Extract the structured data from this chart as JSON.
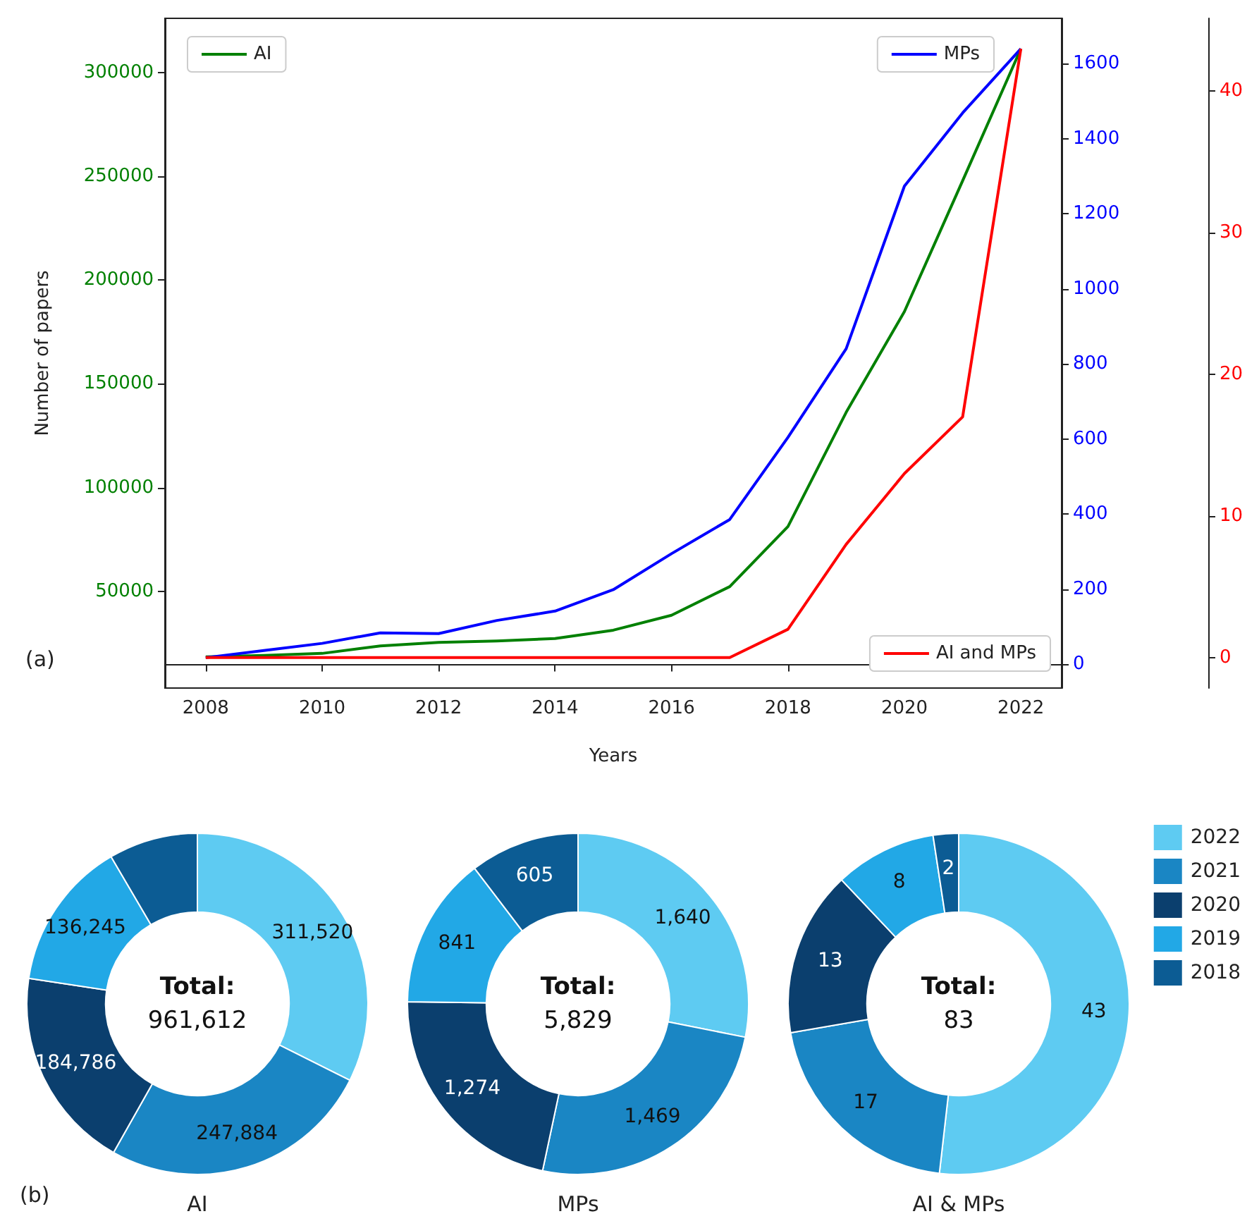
{
  "chart_data": [
    {
      "type": "line",
      "xlabel": "Years",
      "ylabel": "Number of papers",
      "x": [
        2008,
        2009,
        2010,
        2011,
        2012,
        2013,
        2014,
        2015,
        2016,
        2017,
        2018,
        2019,
        2020,
        2021,
        2022
      ],
      "xlim": [
        2007.3,
        2022.7
      ],
      "xticks": [
        2008,
        2010,
        2012,
        2014,
        2016,
        2018,
        2020,
        2022
      ],
      "ylim": [
        3300,
        326200
      ],
      "yticks": [
        50000,
        100000,
        150000,
        200000,
        250000,
        300000
      ],
      "y2lim": [
        -63,
        1721
      ],
      "y2ticks": [
        0,
        200,
        400,
        600,
        800,
        1000,
        1200,
        1400,
        1600
      ],
      "y3lim": [
        -2.15,
        45.15
      ],
      "y3ticks": [
        0,
        10,
        20,
        30,
        40
      ],
      "legend": "top left",
      "annotations": [
        "(a)"
      ],
      "series": [
        {
          "name": "AI",
          "color": "#008000",
          "axis": "y",
          "values": [
            18300,
            19000,
            20000,
            23600,
            25300,
            26000,
            27200,
            31200,
            38400,
            52200,
            81177,
            136245,
            184786,
            247884,
            311520
          ]
        },
        {
          "name": "MPs",
          "color": "#0000ff",
          "axis": "y2",
          "values": [
            18,
            37,
            56,
            84,
            82,
            117,
            142,
            199,
            295,
            386,
            605,
            841,
            1274,
            1469,
            1640
          ]
        },
        {
          "name": "AI and MPs",
          "color": "#ff0000",
          "axis": "y3",
          "values": [
            0,
            0,
            0,
            0,
            0,
            0,
            0,
            0,
            0,
            0,
            2,
            8,
            13,
            17,
            43
          ]
        }
      ]
    },
    {
      "type": "donut",
      "categories": [
        "2022",
        "2021",
        "2020",
        "2019",
        "2018"
      ],
      "colors": [
        "#5ecbf2",
        "#1a86c4",
        "#0b3f6e",
        "#22a8e6",
        "#0c5c94"
      ],
      "legend": "right",
      "annotations": [
        "Total:",
        "961,612",
        "Total:",
        "5,829",
        "Total:",
        "83",
        "(b)"
      ],
      "series": [
        {
          "name": "AI",
          "values": [
            311520,
            247884,
            184786,
            136245,
            81177
          ],
          "value_labels": [
            "311,520",
            "247,884",
            "184,786",
            "136,245",
            null
          ]
        },
        {
          "name": "MPs",
          "values": [
            1640,
            1469,
            1274,
            841,
            605
          ],
          "value_labels": [
            "1,640",
            "1,469",
            "1,274",
            "841",
            "605"
          ]
        },
        {
          "name": "AI & MPs",
          "values": [
            43,
            17,
            13,
            8,
            2
          ],
          "value_labels": [
            "43",
            "17",
            "13",
            "8",
            "2"
          ]
        }
      ]
    }
  ]
}
